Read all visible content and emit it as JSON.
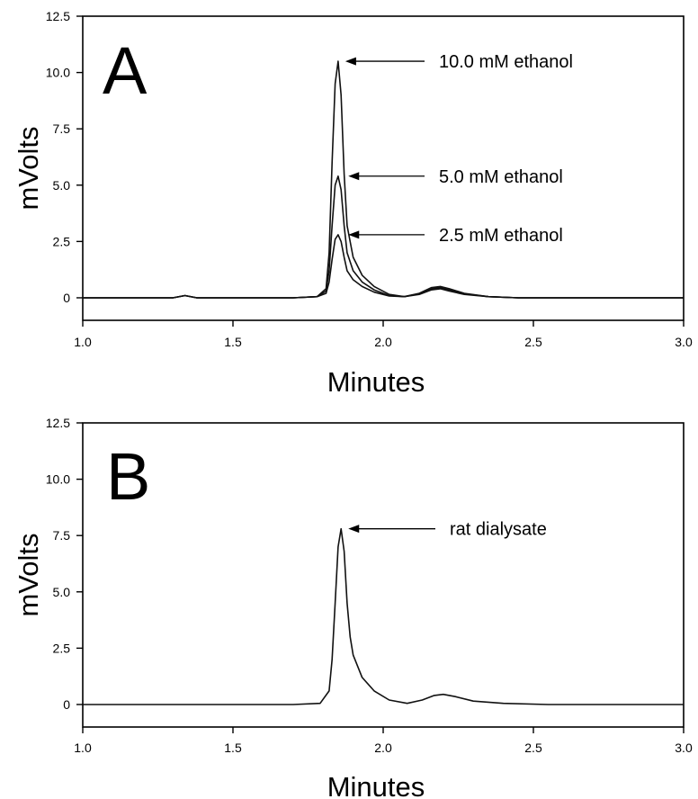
{
  "chart_data": [
    {
      "type": "line",
      "panel_label": "A",
      "xlabel": "Minutes",
      "ylabel": "mVolts",
      "xlim": [
        1.0,
        3.0
      ],
      "ylim": [
        -1.0,
        12.5
      ],
      "xticks": [
        "1.0",
        "1.5",
        "2.0",
        "2.5",
        "3.0"
      ],
      "yticks": [
        "0",
        "2.5",
        "5.0",
        "7.5",
        "10.0",
        "12.5"
      ],
      "grid": false,
      "series": [
        {
          "name": "10.0 mM ethanol",
          "x": [
            1.0,
            1.3,
            1.34,
            1.38,
            1.5,
            1.7,
            1.78,
            1.81,
            1.82,
            1.83,
            1.84,
            1.85,
            1.86,
            1.87,
            1.88,
            1.9,
            1.93,
            1.97,
            2.02,
            2.07,
            2.12,
            2.16,
            2.19,
            2.22,
            2.27,
            2.35,
            2.45,
            2.6,
            3.0
          ],
          "y": [
            0.0,
            0.0,
            0.1,
            0.0,
            0.0,
            0.0,
            0.05,
            0.4,
            2.0,
            6.0,
            9.5,
            10.5,
            9.0,
            5.5,
            3.2,
            1.8,
            1.0,
            0.5,
            0.15,
            0.05,
            0.2,
            0.45,
            0.5,
            0.4,
            0.2,
            0.05,
            0.0,
            0.0,
            0.0
          ],
          "label": "10.0 mM ethanol",
          "label_at": [
            1.85,
            10.5
          ]
        },
        {
          "name": "5.0 mM ethanol",
          "x": [
            1.0,
            1.3,
            1.34,
            1.38,
            1.5,
            1.7,
            1.78,
            1.81,
            1.82,
            1.83,
            1.84,
            1.85,
            1.86,
            1.87,
            1.88,
            1.9,
            1.93,
            1.97,
            2.02,
            2.07,
            2.12,
            2.16,
            2.19,
            2.22,
            2.27,
            2.35,
            2.45,
            2.6,
            3.0
          ],
          "y": [
            0.0,
            0.0,
            0.1,
            0.0,
            0.0,
            0.0,
            0.05,
            0.3,
            1.2,
            3.2,
            5.0,
            5.4,
            4.8,
            3.2,
            2.0,
            1.2,
            0.7,
            0.35,
            0.1,
            0.05,
            0.18,
            0.4,
            0.45,
            0.35,
            0.18,
            0.05,
            0.0,
            0.0,
            0.0
          ],
          "label": "5.0 mM ethanol",
          "label_at": [
            1.86,
            5.4
          ]
        },
        {
          "name": "2.5 mM ethanol",
          "x": [
            1.0,
            1.3,
            1.34,
            1.38,
            1.5,
            1.7,
            1.78,
            1.81,
            1.82,
            1.83,
            1.84,
            1.85,
            1.86,
            1.87,
            1.88,
            1.9,
            1.93,
            1.97,
            2.02,
            2.07,
            2.12,
            2.16,
            2.19,
            2.22,
            2.27,
            2.35,
            2.45,
            2.6,
            3.0
          ],
          "y": [
            0.0,
            0.0,
            0.1,
            0.0,
            0.0,
            0.0,
            0.05,
            0.2,
            0.7,
            1.7,
            2.6,
            2.8,
            2.5,
            1.8,
            1.2,
            0.8,
            0.5,
            0.25,
            0.08,
            0.05,
            0.15,
            0.35,
            0.4,
            0.3,
            0.15,
            0.05,
            0.0,
            0.0,
            0.0
          ],
          "label": "2.5 mM ethanol",
          "label_at": [
            1.86,
            2.8
          ]
        }
      ]
    },
    {
      "type": "line",
      "panel_label": "B",
      "xlabel": "Minutes",
      "ylabel": "mVolts",
      "xlim": [
        1.0,
        3.0
      ],
      "ylim": [
        -1.0,
        12.5
      ],
      "xticks": [
        "1.0",
        "1.5",
        "2.0",
        "2.5",
        "3.0"
      ],
      "yticks": [
        "0",
        "2.5",
        "5.0",
        "7.5",
        "10.0",
        "12.5"
      ],
      "grid": false,
      "series": [
        {
          "name": "rat dialysate",
          "x": [
            1.0,
            1.5,
            1.7,
            1.79,
            1.82,
            1.83,
            1.84,
            1.85,
            1.86,
            1.87,
            1.88,
            1.89,
            1.9,
            1.93,
            1.97,
            2.02,
            2.08,
            2.13,
            2.17,
            2.2,
            2.24,
            2.3,
            2.4,
            2.55,
            3.0
          ],
          "y": [
            0.0,
            0.0,
            0.0,
            0.05,
            0.6,
            2.0,
            4.5,
            7.0,
            7.8,
            6.8,
            4.5,
            3.0,
            2.2,
            1.2,
            0.6,
            0.2,
            0.05,
            0.2,
            0.4,
            0.45,
            0.35,
            0.15,
            0.05,
            0.0,
            0.0
          ],
          "label": "rat dialysate",
          "label_at": [
            1.86,
            7.8
          ]
        }
      ]
    }
  ]
}
